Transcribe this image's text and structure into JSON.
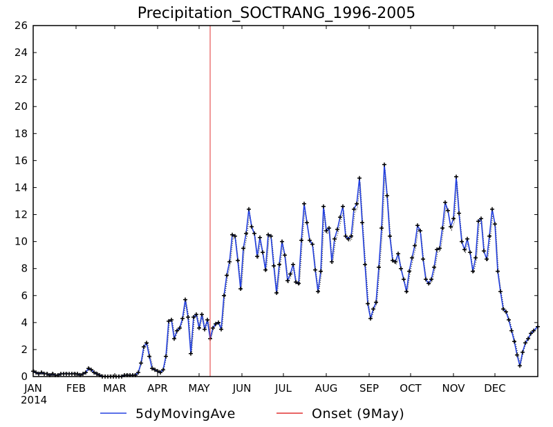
{
  "chart_data": {
    "type": "line",
    "title": "Precipitation_SOCTRANG_1996-2005",
    "xlabel": "",
    "ylabel": "",
    "year_label": "2014",
    "ylim": [
      0,
      26
    ],
    "yticks": [
      0,
      2,
      4,
      6,
      8,
      10,
      12,
      14,
      16,
      18,
      20,
      22,
      24,
      26
    ],
    "xlim": [
      1,
      366
    ],
    "x_unit": "day of year",
    "month_ticks": [
      {
        "label": "JAN",
        "day": 1
      },
      {
        "label": "FEB",
        "day": 32
      },
      {
        "label": "MAR",
        "day": 60
      },
      {
        "label": "APR",
        "day": 91
      },
      {
        "label": "MAY",
        "day": 121
      },
      {
        "label": "JUN",
        "day": 152
      },
      {
        "label": "JUL",
        "day": 182
      },
      {
        "label": "AUG",
        "day": 213
      },
      {
        "label": "SEP",
        "day": 244
      },
      {
        "label": "OCT",
        "day": 274
      },
      {
        "label": "NOV",
        "day": 305
      },
      {
        "label": "DEC",
        "day": 335
      }
    ],
    "grid": false,
    "legend_placement": "bottom",
    "series": [
      {
        "name": "5dyMovingAve",
        "color": "#2340e0",
        "marker": "plus",
        "points": [
          [
            1,
            0.4
          ],
          [
            3,
            0.3
          ],
          [
            5,
            0.2
          ],
          [
            7,
            0.3
          ],
          [
            9,
            0.2
          ],
          [
            11,
            0.2
          ],
          [
            13,
            0.1
          ],
          [
            15,
            0.2
          ],
          [
            17,
            0.1
          ],
          [
            19,
            0.1
          ],
          [
            21,
            0.2
          ],
          [
            23,
            0.2
          ],
          [
            25,
            0.2
          ],
          [
            27,
            0.2
          ],
          [
            29,
            0.2
          ],
          [
            31,
            0.2
          ],
          [
            33,
            0.2
          ],
          [
            35,
            0.1
          ],
          [
            37,
            0.2
          ],
          [
            39,
            0.3
          ],
          [
            41,
            0.6
          ],
          [
            43,
            0.5
          ],
          [
            45,
            0.3
          ],
          [
            47,
            0.2
          ],
          [
            49,
            0.1
          ],
          [
            51,
            0.0
          ],
          [
            53,
            0.0
          ],
          [
            55,
            0.0
          ],
          [
            57,
            0.0
          ],
          [
            59,
            0.0
          ],
          [
            61,
            0.0
          ],
          [
            63,
            0.0
          ],
          [
            65,
            0.0
          ],
          [
            67,
            0.1
          ],
          [
            69,
            0.1
          ],
          [
            71,
            0.1
          ],
          [
            73,
            0.1
          ],
          [
            75,
            0.1
          ],
          [
            77,
            0.3
          ],
          [
            79,
            1.0
          ],
          [
            81,
            2.2
          ],
          [
            83,
            2.5
          ],
          [
            85,
            1.5
          ],
          [
            87,
            0.6
          ],
          [
            89,
            0.5
          ],
          [
            91,
            0.4
          ],
          [
            93,
            0.3
          ],
          [
            95,
            0.5
          ],
          [
            97,
            1.5
          ],
          [
            99,
            4.1
          ],
          [
            101,
            4.2
          ],
          [
            103,
            2.8
          ],
          [
            105,
            3.4
          ],
          [
            107,
            3.6
          ],
          [
            109,
            4.3
          ],
          [
            111,
            5.7
          ],
          [
            113,
            4.4
          ],
          [
            115,
            1.7
          ],
          [
            117,
            4.4
          ],
          [
            119,
            4.6
          ],
          [
            121,
            3.6
          ],
          [
            123,
            4.6
          ],
          [
            125,
            3.5
          ],
          [
            127,
            4.2
          ],
          [
            129,
            2.8
          ],
          [
            131,
            3.6
          ],
          [
            133,
            3.9
          ],
          [
            135,
            4.0
          ],
          [
            137,
            3.5
          ],
          [
            139,
            6.0
          ],
          [
            141,
            7.5
          ],
          [
            143,
            8.5
          ],
          [
            145,
            10.5
          ],
          [
            147,
            10.4
          ],
          [
            149,
            8.6
          ],
          [
            151,
            6.5
          ],
          [
            153,
            9.5
          ],
          [
            155,
            10.6
          ],
          [
            157,
            12.4
          ],
          [
            159,
            11.1
          ],
          [
            161,
            10.6
          ],
          [
            163,
            8.9
          ],
          [
            165,
            10.3
          ],
          [
            167,
            9.2
          ],
          [
            169,
            7.9
          ],
          [
            171,
            10.5
          ],
          [
            173,
            10.4
          ],
          [
            175,
            8.2
          ],
          [
            177,
            6.2
          ],
          [
            179,
            8.3
          ],
          [
            181,
            10.0
          ],
          [
            183,
            9.0
          ],
          [
            185,
            7.1
          ],
          [
            187,
            7.6
          ],
          [
            189,
            8.3
          ],
          [
            191,
            7.0
          ],
          [
            193,
            6.9
          ],
          [
            195,
            10.1
          ],
          [
            197,
            12.8
          ],
          [
            199,
            11.4
          ],
          [
            201,
            10.1
          ],
          [
            203,
            9.8
          ],
          [
            205,
            7.9
          ],
          [
            207,
            6.3
          ],
          [
            209,
            7.8
          ],
          [
            211,
            12.6
          ],
          [
            213,
            10.8
          ],
          [
            215,
            11.0
          ],
          [
            217,
            8.5
          ],
          [
            219,
            10.2
          ],
          [
            221,
            10.9
          ],
          [
            223,
            11.8
          ],
          [
            225,
            12.6
          ],
          [
            227,
            10.4
          ],
          [
            229,
            10.2
          ],
          [
            231,
            10.4
          ],
          [
            233,
            12.4
          ],
          [
            235,
            12.8
          ],
          [
            237,
            14.7
          ],
          [
            239,
            11.4
          ],
          [
            241,
            8.3
          ],
          [
            243,
            5.4
          ],
          [
            245,
            4.3
          ],
          [
            247,
            5.0
          ],
          [
            249,
            5.5
          ],
          [
            251,
            8.1
          ],
          [
            253,
            11.0
          ],
          [
            255,
            15.7
          ],
          [
            257,
            13.4
          ],
          [
            259,
            10.4
          ],
          [
            261,
            8.6
          ],
          [
            263,
            8.5
          ],
          [
            265,
            9.1
          ],
          [
            267,
            8.0
          ],
          [
            269,
            7.2
          ],
          [
            271,
            6.3
          ],
          [
            273,
            7.8
          ],
          [
            275,
            8.8
          ],
          [
            277,
            9.7
          ],
          [
            279,
            11.2
          ],
          [
            281,
            10.8
          ],
          [
            283,
            8.7
          ],
          [
            285,
            7.2
          ],
          [
            287,
            6.9
          ],
          [
            289,
            7.2
          ],
          [
            291,
            8.1
          ],
          [
            293,
            9.4
          ],
          [
            295,
            9.5
          ],
          [
            297,
            11.0
          ],
          [
            299,
            12.9
          ],
          [
            301,
            12.3
          ],
          [
            303,
            11.1
          ],
          [
            305,
            11.7
          ],
          [
            307,
            14.8
          ],
          [
            309,
            12.1
          ],
          [
            311,
            10.0
          ],
          [
            313,
            9.4
          ],
          [
            315,
            10.2
          ],
          [
            317,
            9.2
          ],
          [
            319,
            7.8
          ],
          [
            321,
            8.8
          ],
          [
            323,
            11.5
          ],
          [
            325,
            11.7
          ],
          [
            327,
            9.3
          ],
          [
            329,
            8.7
          ],
          [
            331,
            10.4
          ],
          [
            333,
            12.4
          ],
          [
            335,
            11.3
          ],
          [
            337,
            7.8
          ],
          [
            339,
            6.3
          ],
          [
            341,
            5.0
          ],
          [
            343,
            4.8
          ],
          [
            345,
            4.2
          ],
          [
            347,
            3.4
          ],
          [
            349,
            2.6
          ],
          [
            351,
            1.6
          ],
          [
            353,
            0.8
          ],
          [
            355,
            1.8
          ],
          [
            357,
            2.5
          ],
          [
            359,
            2.8
          ],
          [
            361,
            3.2
          ],
          [
            363,
            3.4
          ],
          [
            366,
            3.7
          ]
        ]
      },
      {
        "name": "Onset (9May)",
        "color": "#e03030",
        "type": "vline",
        "x": 129
      }
    ]
  }
}
